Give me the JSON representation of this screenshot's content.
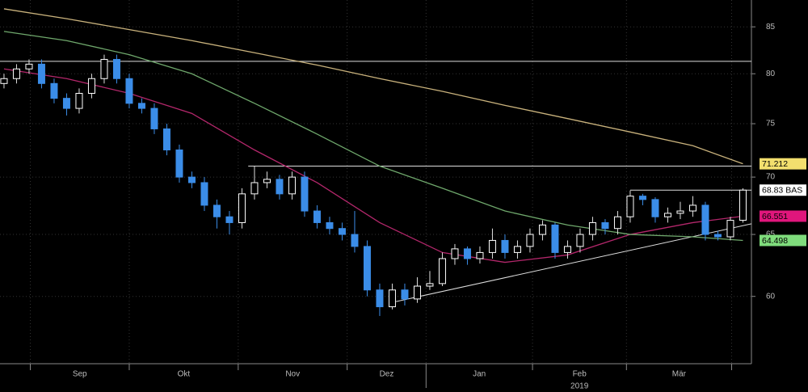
{
  "chart_data": {
    "type": "candlestick",
    "log_scale": true,
    "grid": true,
    "ylim": [
      55,
      88
    ],
    "yticks": [
      60,
      65,
      70,
      75,
      80,
      85
    ],
    "xlim": [
      -0.32,
      59.68
    ],
    "xticks": [
      2.1,
      10,
      18.7,
      27.4,
      33.7,
      42.2,
      49.7,
      58.1
    ],
    "categories": [
      "Sep",
      "Okt",
      "Nov",
      "Dez",
      "Jan",
      "Feb",
      "Mär"
    ],
    "year_label": "2019",
    "up_color": "#ffffff",
    "down_color": "#3b8de8",
    "open": [
      79,
      79.5,
      80.5,
      81,
      79,
      77.5,
      76.5,
      78,
      79.5,
      81.5,
      79.5,
      77,
      76.5,
      74.5,
      72.5,
      70,
      69.5,
      67.5,
      66.5,
      66,
      68.5,
      69.5,
      69.8,
      68.5,
      70,
      67,
      66,
      65.5,
      65,
      64,
      60.5,
      59.2,
      60.5,
      59.8,
      60.8,
      61,
      63,
      63.8,
      63,
      63.5,
      64.5,
      63.5,
      64,
      65,
      65.8,
      63.5,
      64,
      65,
      66,
      65.5,
      66.5,
      68.3,
      68,
      66.5,
      66.8,
      67,
      67.5,
      65,
      64.8,
      66.2
    ],
    "high": [
      80,
      81,
      81.5,
      81.5,
      79.5,
      78,
      78.5,
      80,
      82,
      82,
      80,
      77.5,
      77,
      75,
      73,
      70.5,
      70,
      68,
      67,
      69,
      71,
      70.5,
      70.2,
      70.5,
      70.5,
      67.5,
      66.5,
      66,
      67,
      64.5,
      61,
      61,
      61,
      61.5,
      62,
      63.5,
      64.2,
      64,
      64,
      65.5,
      65,
      64.5,
      65.5,
      66.2,
      66,
      64.5,
      65.5,
      66.5,
      66.3,
      67,
      68.8,
      68.5,
      68.2,
      67.3,
      67.8,
      68.3,
      67.8,
      65.3,
      66.5,
      69
    ],
    "low": [
      78.5,
      79,
      80,
      78.5,
      77,
      75.8,
      76,
      77.5,
      79,
      79,
      76.5,
      76,
      74,
      72,
      69.5,
      69,
      67,
      65.5,
      65,
      65.5,
      68,
      69,
      68,
      68,
      66.5,
      65.5,
      65,
      64.5,
      63.5,
      60,
      58.5,
      59,
      59.3,
      59.5,
      60.5,
      60.8,
      62.5,
      62.5,
      62.6,
      63,
      63,
      63,
      63.5,
      64.5,
      63,
      63,
      63.5,
      64.5,
      65,
      65,
      66,
      67.5,
      66,
      66,
      66.3,
      66.5,
      64.5,
      64.5,
      64.5,
      66
    ],
    "close": [
      79.5,
      80.5,
      81,
      79,
      77.5,
      76.5,
      78,
      79.5,
      81.5,
      79.5,
      77,
      76.5,
      74.5,
      72.5,
      70,
      69.5,
      67.5,
      66.5,
      66,
      68.5,
      69.5,
      69.8,
      68.5,
      70,
      67,
      66,
      65.5,
      65,
      64,
      60.5,
      59.2,
      60.5,
      59.8,
      60.8,
      61,
      63,
      63.8,
      63,
      63.5,
      64.5,
      63.5,
      64,
      65,
      65.8,
      63.5,
      64,
      65,
      66,
      65.5,
      66.5,
      68.3,
      68,
      66.5,
      66.8,
      67,
      67.5,
      65,
      64.8,
      66.2,
      68.83
    ],
    "last_label": "68.83 BAS",
    "last_label_color": "#ffffff",
    "series": [
      {
        "color": "#c9b27c",
        "label_color": "#f3df6e",
        "x": [
          0,
          5,
          10,
          15,
          20,
          25,
          30,
          35,
          40,
          45,
          50,
          55,
          59
        ],
        "values": [
          87,
          85.9,
          84.7,
          83.5,
          82.2,
          80.9,
          79.5,
          78.2,
          76.8,
          75.5,
          74.2,
          72.9,
          71.212
        ],
        "value_labels": [
          null,
          null,
          null,
          null,
          null,
          null,
          null,
          null,
          null,
          null,
          null,
          null,
          "71.212"
        ]
      },
      {
        "color": "#b3276b",
        "label_color": "#e0167c",
        "x": [
          0,
          5,
          10,
          15,
          20,
          25,
          30,
          35,
          40,
          45,
          50,
          55,
          59
        ],
        "values": [
          80.5,
          79.5,
          78,
          76,
          72.5,
          69.5,
          66,
          63.5,
          62.7,
          63.3,
          65,
          66,
          66.551
        ],
        "value_labels": [
          null,
          null,
          null,
          null,
          null,
          null,
          null,
          null,
          null,
          null,
          null,
          null,
          "66.551"
        ]
      },
      {
        "color": "#6fa86c",
        "label_color": "#7fdc7c",
        "x": [
          0,
          5,
          10,
          15,
          20,
          25,
          30,
          35,
          40,
          45,
          50,
          55,
          59
        ],
        "values": [
          84.5,
          83.5,
          82,
          80,
          77,
          74,
          71,
          69,
          67,
          65.8,
          65,
          64.8,
          64.498
        ],
        "value_labels": [
          null,
          null,
          null,
          null,
          null,
          null,
          null,
          null,
          null,
          null,
          null,
          null,
          "64.498"
        ]
      }
    ],
    "hlines": [
      {
        "value": 81.3,
        "start": -0.32
      },
      {
        "value": 71,
        "start": 19.5
      },
      {
        "value": 68.83,
        "start": 50
      }
    ],
    "hline_color": "#dddddd",
    "trendline": {
      "x": [
        31.3,
        59.68
      ],
      "values": [
        59.6,
        65.9
      ]
    }
  }
}
